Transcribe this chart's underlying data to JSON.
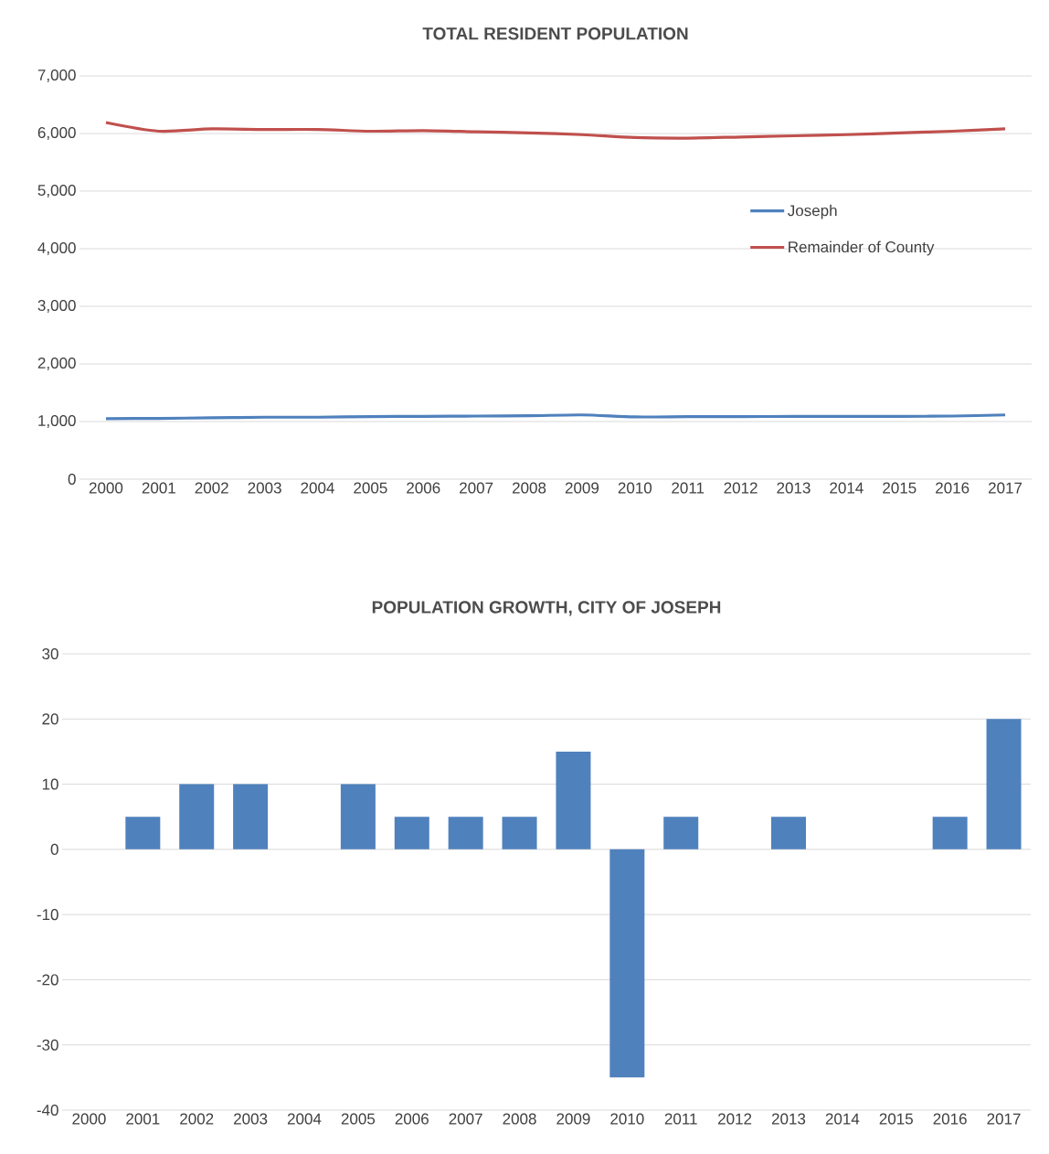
{
  "chart_data": [
    {
      "type": "line",
      "title": "TOTAL RESIDENT POPULATION",
      "categories": [
        "2000",
        "2001",
        "2002",
        "2003",
        "2004",
        "2005",
        "2006",
        "2007",
        "2008",
        "2009",
        "2010",
        "2011",
        "2012",
        "2013",
        "2014",
        "2015",
        "2016",
        "2017"
      ],
      "series": [
        {
          "name": "Joseph",
          "color": "#4f81bd",
          "values": [
            1050,
            1055,
            1065,
            1075,
            1075,
            1085,
            1090,
            1095,
            1100,
            1115,
            1080,
            1085,
            1085,
            1090,
            1090,
            1090,
            1095,
            1115
          ]
        },
        {
          "name": "Remainder of County",
          "color": "#c0504d",
          "values": [
            6190,
            6040,
            6080,
            6070,
            6070,
            6040,
            6050,
            6030,
            6010,
            5980,
            5930,
            5920,
            5940,
            5960,
            5980,
            6010,
            6040,
            6080
          ]
        }
      ],
      "ylim": [
        0,
        7000
      ],
      "yticks": [
        0,
        {
          "value": 1000,
          "label": "1,000"
        },
        {
          "value": 2000,
          "label": "2,000"
        },
        {
          "value": 3000,
          "label": "3,000"
        },
        {
          "value": 4000,
          "label": "4,000"
        },
        {
          "value": 5000,
          "label": "5,000"
        },
        {
          "value": 6000,
          "label": "6,000"
        },
        {
          "value": 7000,
          "label": "7,000"
        }
      ],
      "grid": "y",
      "legend": "right"
    },
    {
      "type": "bar",
      "title": "POPULATION GROWTH, CITY OF JOSEPH",
      "categories": [
        "2000",
        "2001",
        "2002",
        "2003",
        "2004",
        "2005",
        "2006",
        "2007",
        "2008",
        "2009",
        "2010",
        "2011",
        "2012",
        "2013",
        "2014",
        "2015",
        "2016",
        "2017"
      ],
      "values": [
        0,
        5,
        10,
        10,
        0,
        10,
        5,
        5,
        5,
        15,
        -35,
        5,
        0,
        5,
        0,
        0,
        5,
        20
      ],
      "color": "#4f81bd",
      "ylim": [
        -40,
        30
      ],
      "yticks": [
        -40,
        -30,
        -20,
        -10,
        0,
        10,
        20,
        30
      ],
      "grid": "y"
    }
  ]
}
